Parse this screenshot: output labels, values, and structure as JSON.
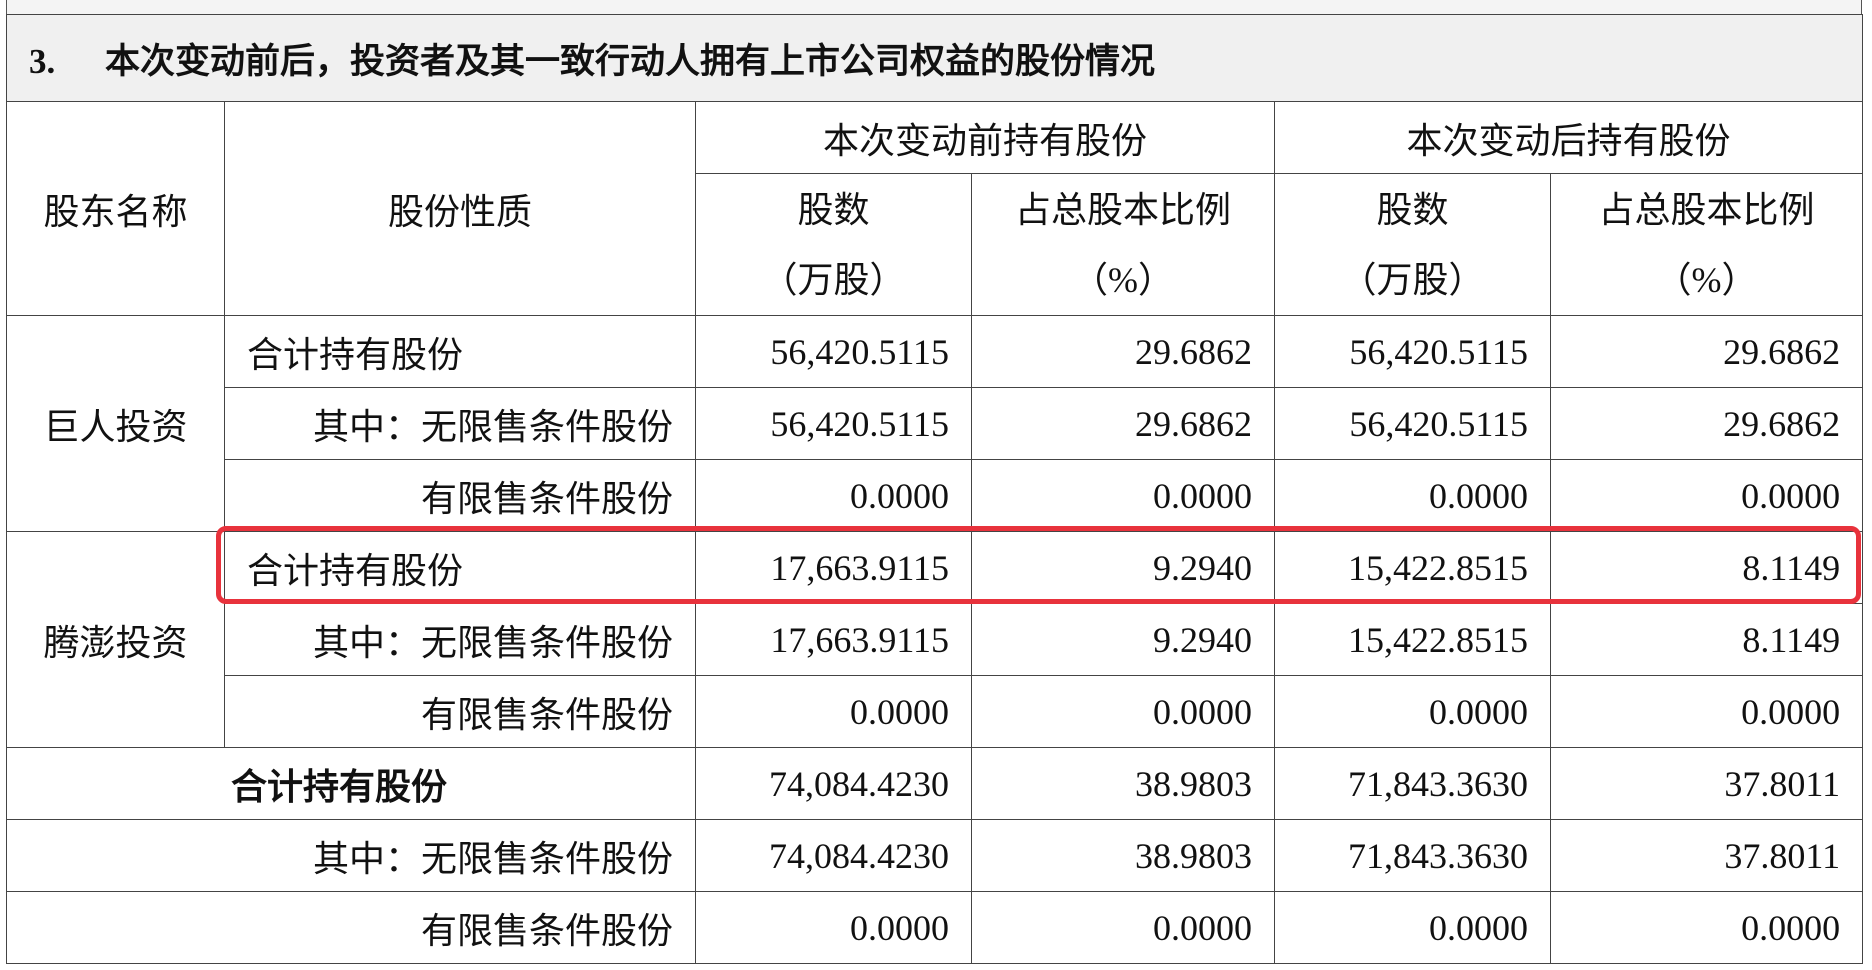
{
  "title": {
    "number": "3.",
    "text": "本次变动前后，投资者及其一致行动人拥有上市公司权益的股份情况"
  },
  "headers": {
    "holder": "股东名称",
    "nature": "股份性质",
    "before": "本次变动前持有股份",
    "after": "本次变动后持有股份",
    "shares": "股数",
    "shares_unit": "（万股）",
    "ratio": "占总股本比例",
    "ratio_unit": "（%）"
  },
  "groups": [
    {
      "name": "巨人投资",
      "rows": [
        {
          "label": "合计持有股份",
          "values": [
            "56,420.5115",
            "29.6862",
            "56,420.5115",
            "29.6862"
          ]
        },
        {
          "label": "其中：无限售条件股份",
          "values": [
            "56,420.5115",
            "29.6862",
            "56,420.5115",
            "29.6862"
          ]
        },
        {
          "label": "有限售条件股份",
          "values": [
            "0.0000",
            "0.0000",
            "0.0000",
            "0.0000"
          ]
        }
      ]
    },
    {
      "name": "腾澎投资",
      "rows": [
        {
          "label": "合计持有股份",
          "values": [
            "17,663.9115",
            "9.2940",
            "15,422.8515",
            "8.1149"
          ]
        },
        {
          "label": "其中：无限售条件股份",
          "values": [
            "17,663.9115",
            "9.2940",
            "15,422.8515",
            "8.1149"
          ]
        },
        {
          "label": "有限售条件股份",
          "values": [
            "0.0000",
            "0.0000",
            "0.0000",
            "0.0000"
          ]
        }
      ]
    }
  ],
  "totals": [
    {
      "label": "合计持有股份",
      "values": [
        "74,084.4230",
        "38.9803",
        "71,843.3630",
        "37.8011"
      ]
    },
    {
      "label": "其中：无限售条件股份",
      "values": [
        "74,084.4230",
        "38.9803",
        "71,843.3630",
        "37.8011"
      ]
    },
    {
      "label": "有限售条件股份",
      "values": [
        "0.0000",
        "0.0000",
        "0.0000",
        "0.0000"
      ]
    }
  ]
}
